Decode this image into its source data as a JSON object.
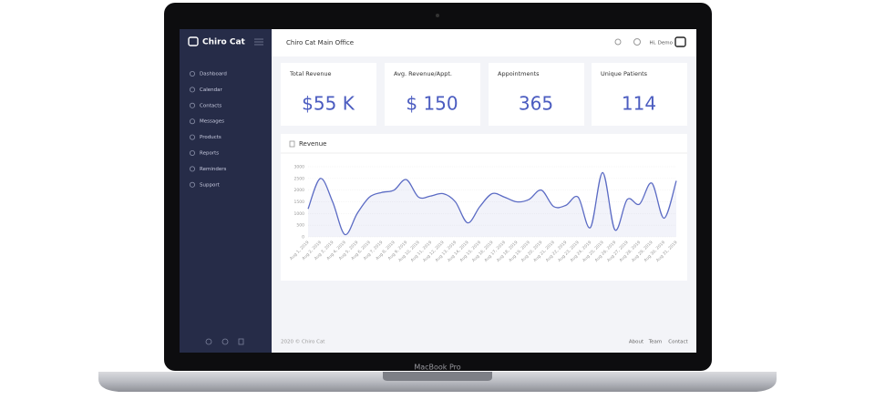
{
  "device_label": "MacBook Pro",
  "sidebar": {
    "brand": "Chiro Cat",
    "menu": [
      "Dashboard",
      "Calendar",
      "Contacts",
      "Messages",
      "Products",
      "Reports",
      "Reminders",
      "Support"
    ]
  },
  "header": {
    "office": "Chiro Cat Main Office",
    "greeting": "Hi, Demo"
  },
  "stats": [
    {
      "label": "Total Revenue",
      "value": "$55 K"
    },
    {
      "label": "Avg. Revenue/Appt.",
      "value": "$ 150"
    },
    {
      "label": "Appointments",
      "value": "365"
    },
    {
      "label": "Unique Patients",
      "value": "114"
    }
  ],
  "chart_data": {
    "type": "area",
    "title": "Revenue",
    "categories": [
      "Aug 1, 2019",
      "Aug 2, 2019",
      "Aug 3, 2019",
      "Aug 4, 2019",
      "Aug 5, 2019",
      "Aug 6, 2019",
      "Aug 7, 2019",
      "Aug 8, 2019",
      "Aug 9, 2019",
      "Aug 10, 2019",
      "Aug 11, 2019",
      "Aug 12, 2019",
      "Aug 13, 2019",
      "Aug 14, 2019",
      "Aug 15, 2019",
      "Aug 16, 2019",
      "Aug 17, 2019",
      "Aug 18, 2019",
      "Aug 19, 2019",
      "Aug 20, 2019",
      "Aug 21, 2019",
      "Aug 22, 2019",
      "Aug 23, 2019",
      "Aug 24, 2019",
      "Aug 25, 2019",
      "Aug 26, 2019",
      "Aug 27, 2019",
      "Aug 28, 2019",
      "Aug 29, 2019",
      "Aug 30, 2019",
      "Aug 31, 2019"
    ],
    "values": [
      1200,
      2500,
      1500,
      100,
      1000,
      1700,
      1900,
      2000,
      2450,
      1700,
      1750,
      1850,
      1500,
      600,
      1300,
      1850,
      1700,
      1500,
      1600,
      2000,
      1300,
      1350,
      1700,
      400,
      2750,
      300,
      1600,
      1400,
      2300,
      800,
      2400
    ],
    "color": "#5b6bc4",
    "ylim": [
      0,
      3000
    ],
    "yticks": [
      0,
      500,
      1000,
      1500,
      2000,
      2500,
      3000
    ],
    "grid": true
  },
  "footer": {
    "copyright": "2020 © Chiro Cat",
    "links": [
      "About",
      "Team",
      "Contact"
    ]
  }
}
